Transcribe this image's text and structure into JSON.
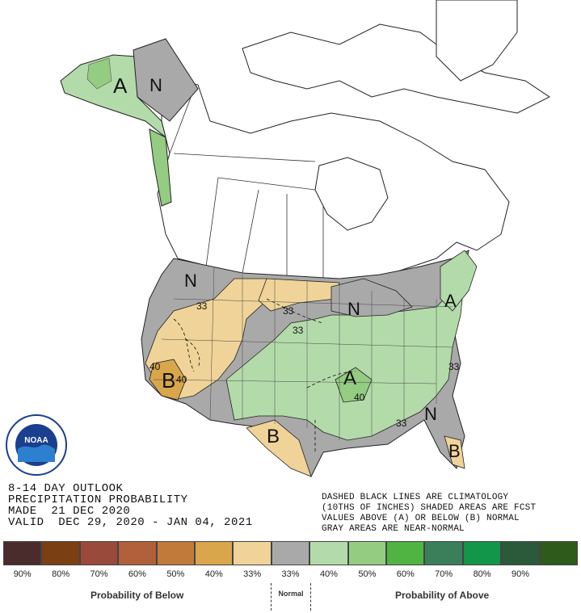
{
  "map": {
    "labels": {
      "alaska_above": "A",
      "alaska_normal": "N",
      "nw_normal": "N",
      "nw_33": "33",
      "west_40a": "40",
      "west_40b": "40",
      "west_below": "B",
      "plains_33a": "33",
      "plains_33b": "33",
      "lakes_normal": "N",
      "ne_above": "A",
      "se_above": "A",
      "se_40": "40",
      "se_33": "33",
      "east_33": "33",
      "texas_below": "B",
      "fl_normal": "N",
      "fl_below": "B"
    },
    "colors": {
      "ocean": "#ffffff",
      "near_normal": "#a9a9a9",
      "below_33": "#efd398",
      "below_40": "#d9a64c",
      "above_33": "#b3dbaa",
      "above_40": "#94cc82"
    }
  },
  "title": {
    "line1": "8-14 DAY OUTLOOK",
    "line2": "PRECIPITATION PROBABILITY",
    "line3": "MADE  21 DEC 2020",
    "line4": "VALID  DEC 29, 2020 - JAN 04, 2021"
  },
  "note": {
    "line1": "DASHED BLACK LINES ARE CLIMATOLOGY",
    "line2": "(10THS OF INCHES) SHADED AREAS ARE FCST",
    "line3": "VALUES ABOVE (A) OR BELOW (B) NORMAL",
    "line4": "GRAY AREAS ARE NEAR-NORMAL"
  },
  "legend": {
    "colors": [
      "#4a2c2c",
      "#7a3f12",
      "#9a4a3a",
      "#b0603a",
      "#c27a3a",
      "#d9a64c",
      "#efd398",
      "#a9a9a9",
      "#b3dbaa",
      "#94cc82",
      "#4fb442",
      "#3a7f5a",
      "#12964a",
      "#2b5a3a",
      "#2e5a1c"
    ],
    "labels": [
      "90%",
      "80%",
      "70%",
      "60%",
      "50%",
      "40%",
      "33%",
      "33%",
      "40%",
      "50%",
      "60%",
      "70%",
      "80%",
      "90%",
      ""
    ],
    "below_caption": "Probability of Below",
    "normal_caption": "Normal",
    "above_caption": "Probability of Above"
  },
  "logo": {
    "text": "NOAA"
  }
}
